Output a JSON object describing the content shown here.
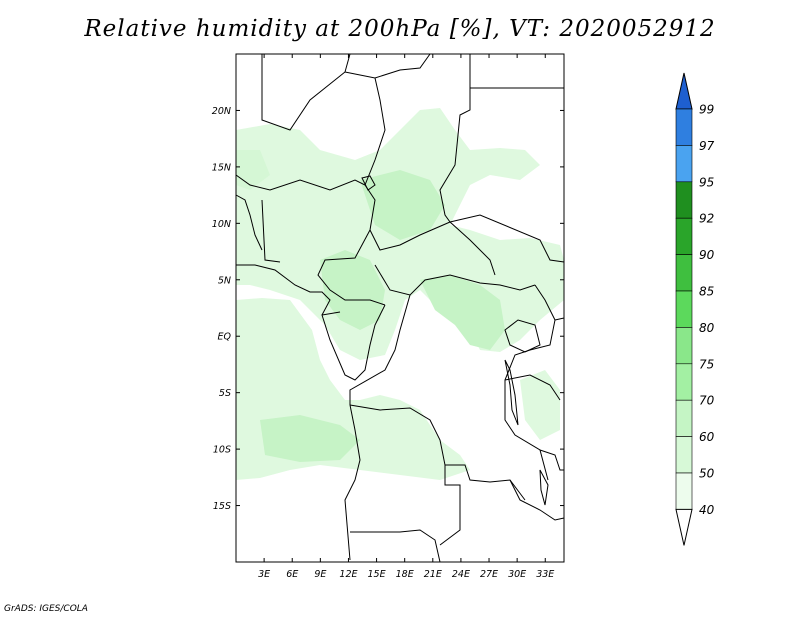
{
  "title": "Relative humidity at 200hPa [%], VT: 2020052912",
  "credit": "GrADS: IGES/COLA",
  "map": {
    "lon_range": [
      0,
      35
    ],
    "lat_range": [
      -20,
      25
    ],
    "lon_ticks": [
      "3E",
      "6E",
      "9E",
      "12E",
      "15E",
      "18E",
      "21E",
      "24E",
      "27E",
      "30E",
      "33E"
    ],
    "lat_ticks": [
      "20N",
      "15N",
      "10N",
      "5N",
      "EQ",
      "5S",
      "10S",
      "15S"
    ],
    "fill_colors": [
      "#f0fff0",
      "#ccfacc",
      "#b8f0b8"
    ],
    "border_color": "#000000"
  },
  "colorbar": {
    "levels": [
      "40",
      "50",
      "60",
      "70",
      "75",
      "80",
      "85",
      "90",
      "92",
      "95",
      "97",
      "99"
    ],
    "colors": [
      "#ffffff",
      "#edfced",
      "#d7f9d7",
      "#c5f5c5",
      "#a3f0a3",
      "#8ae78a",
      "#5cd95c",
      "#3fbf3f",
      "#2aa52a",
      "#1f8f1f",
      "#4aa3f0",
      "#2f7fe0",
      "#1e5fd0"
    ]
  }
}
